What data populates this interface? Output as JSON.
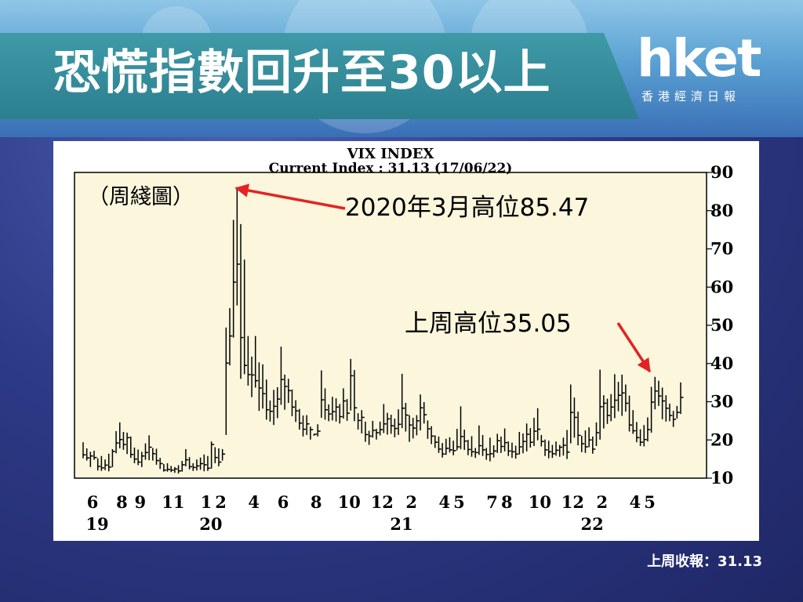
{
  "header": {
    "title": "恐慌指數回升至30以上",
    "logo_main": "hket",
    "logo_sub": "香港經濟日報"
  },
  "footer": {
    "close_text": "上周收報：31.13"
  },
  "colors": {
    "banner": "#2c7f8f",
    "plot_bg": "#fbf6dc",
    "annotation": "#e32323",
    "bars": "#000000"
  },
  "chart_data": {
    "type": "ohlc-bar",
    "title": "VIX INDEX",
    "subtitle": "Current Index : 31.13 (17/06/22)",
    "period_label": "（周綫圖）",
    "ylim": [
      10,
      90
    ],
    "yticks": [
      10,
      20,
      30,
      40,
      50,
      60,
      70,
      80,
      90
    ],
    "month_ticks": [
      {
        "label": "6",
        "week": 0
      },
      {
        "label": "8",
        "week": 8
      },
      {
        "label": "9",
        "week": 13
      },
      {
        "label": "11",
        "week": 22
      },
      {
        "label": "1",
        "week": 31
      },
      {
        "label": "2",
        "week": 35
      },
      {
        "label": "4",
        "week": 44
      },
      {
        "label": "6",
        "week": 52
      },
      {
        "label": "8",
        "week": 61
      },
      {
        "label": "10",
        "week": 70
      },
      {
        "label": "12",
        "week": 79
      },
      {
        "label": "2",
        "week": 87
      },
      {
        "label": "4",
        "week": 96
      },
      {
        "label": "5",
        "week": 100
      },
      {
        "label": "7",
        "week": 109
      },
      {
        "label": "8",
        "week": 113
      },
      {
        "label": "10",
        "week": 122
      },
      {
        "label": "12",
        "week": 131
      },
      {
        "label": "2",
        "week": 139
      },
      {
        "label": "4",
        "week": 148
      },
      {
        "label": "5",
        "week": 152
      }
    ],
    "year_ticks": [
      {
        "label": "19",
        "week": 0
      },
      {
        "label": "20",
        "week": 31
      },
      {
        "label": "21",
        "week": 83
      },
      {
        "label": "22",
        "week": 135
      }
    ],
    "annotations": [
      {
        "text": "2020年3月高位85.47",
        "week": 40,
        "value": 85.47
      },
      {
        "text": "上周高位35.05",
        "week": 155,
        "value": 35.05
      }
    ],
    "weekly": [
      [
        19.4,
        15.2,
        16.1
      ],
      [
        17.8,
        14.6,
        15.3
      ],
      [
        16.9,
        12.9,
        15.8
      ],
      [
        17.2,
        14.8,
        15.4
      ],
      [
        15.2,
        12.0,
        13.1
      ],
      [
        15.8,
        11.9,
        12.7
      ],
      [
        14.9,
        12.1,
        13.4
      ],
      [
        16.4,
        11.8,
        12.9
      ],
      [
        17.6,
        12.9,
        17.0
      ],
      [
        22.3,
        16.5,
        19.2
      ],
      [
        24.6,
        17.8,
        20.1
      ],
      [
        22.1,
        17.4,
        18.8
      ],
      [
        21.9,
        16.3,
        20.6
      ],
      [
        20.9,
        15.3,
        16.2
      ],
      [
        18.0,
        13.9,
        15.0
      ],
      [
        17.5,
        13.4,
        14.2
      ],
      [
        16.9,
        12.9,
        15.8
      ],
      [
        19.1,
        14.8,
        16.7
      ],
      [
        21.2,
        14.7,
        18.1
      ],
      [
        17.9,
        14.6,
        16.4
      ],
      [
        17.7,
        13.5,
        14.6
      ],
      [
        15.3,
        12.4,
        13.8
      ],
      [
        13.7,
        11.7,
        12.1
      ],
      [
        13.9,
        11.7,
        12.3
      ],
      [
        13.2,
        11.6,
        12.1
      ],
      [
        12.9,
        11.4,
        12.4
      ],
      [
        13.4,
        11.2,
        11.9
      ],
      [
        14.5,
        11.7,
        13.5
      ],
      [
        17.6,
        13.1,
        14.8
      ],
      [
        15.5,
        12.3,
        13.0
      ],
      [
        13.9,
        11.9,
        12.8
      ],
      [
        14.9,
        12.0,
        13.2
      ],
      [
        15.4,
        12.2,
        13.8
      ],
      [
        16.2,
        11.8,
        13.5
      ],
      [
        15.8,
        11.9,
        12.6
      ],
      [
        19.6,
        12.5,
        18.8
      ],
      [
        18.1,
        13.9,
        15.4
      ],
      [
        17.8,
        13.1,
        14.2
      ],
      [
        17.6,
        14.6,
        16.3
      ],
      [
        49.4,
        21.3,
        40.1
      ],
      [
        54.5,
        39.5,
        47.2
      ],
      [
        77.6,
        46.8,
        61.3
      ],
      [
        85.5,
        55.2,
        66.0
      ],
      [
        76.5,
        36.0,
        46.8
      ],
      [
        67.2,
        37.2,
        39.5
      ],
      [
        47.2,
        34.2,
        37.1
      ],
      [
        41.8,
        31.2,
        37.0
      ],
      [
        47.2,
        33.7,
        35.5
      ],
      [
        40.3,
        27.6,
        33.6
      ],
      [
        39.8,
        28.2,
        32.1
      ],
      [
        35.8,
        25.3,
        27.9
      ],
      [
        30.3,
        24.8,
        27.5
      ],
      [
        33.1,
        23.9,
        28.8
      ],
      [
        33.8,
        25.7,
        30.7
      ],
      [
        44.4,
        29.2,
        35.8
      ],
      [
        37.1,
        27.9,
        34.0
      ],
      [
        36.0,
        29.7,
        32.9
      ],
      [
        33.2,
        26.2,
        28.6
      ],
      [
        30.4,
        24.7,
        27.6
      ],
      [
        28.1,
        22.7,
        24.4
      ],
      [
        26.4,
        20.9,
        22.8
      ],
      [
        26.5,
        21.3,
        24.2
      ],
      [
        23.5,
        20.1,
        22.7
      ],
      [
        21.6,
        21.1,
        21.5
      ],
      [
        24.1,
        20.9,
        22.3
      ],
      [
        38.2,
        25.8,
        30.5
      ],
      [
        33.5,
        25.3,
        27.9
      ],
      [
        29.3,
        24.9,
        26.8
      ],
      [
        31.3,
        25.1,
        27.4
      ],
      [
        30.9,
        24.8,
        28.6
      ],
      [
        29.4,
        24.3,
        26.1
      ],
      [
        33.5,
        25.6,
        30.2
      ],
      [
        30.7,
        25.0,
        27.0
      ],
      [
        41.2,
        27.7,
        36.8
      ],
      [
        38.3,
        24.9,
        28.4
      ],
      [
        27.0,
        22.7,
        25.1
      ],
      [
        27.8,
        21.7,
        25.9
      ],
      [
        24.8,
        19.5,
        21.4
      ],
      [
        22.4,
        18.7,
        21.0
      ],
      [
        25.0,
        20.6,
        22.5
      ],
      [
        22.9,
        20.1,
        21.9
      ],
      [
        24.8,
        21.2,
        22.7
      ],
      [
        29.4,
        21.8,
        24.2
      ],
      [
        27.1,
        21.4,
        25.5
      ],
      [
        26.6,
        21.6,
        23.7
      ],
      [
        25.6,
        20.7,
        23.0
      ],
      [
        28.0,
        21.3,
        24.1
      ],
      [
        37.3,
        23.1,
        28.3
      ],
      [
        29.7,
        22.2,
        26.5
      ],
      [
        26.5,
        19.5,
        23.9
      ],
      [
        25.8,
        20.4,
        23.1
      ],
      [
        26.5,
        21.2,
        25.0
      ],
      [
        31.9,
        22.5,
        28.4
      ],
      [
        29.9,
        24.3,
        26.6
      ],
      [
        25.1,
        20.3,
        22.9
      ],
      [
        23.6,
        18.9,
        21.0
      ],
      [
        21.2,
        17.9,
        19.4
      ],
      [
        20.9,
        16.6,
        17.6
      ],
      [
        19.2,
        15.4,
        16.3
      ],
      [
        20.3,
        16.1,
        17.8
      ],
      [
        20.7,
        16.7,
        17.4
      ],
      [
        19.8,
        16.0,
        17.2
      ],
      [
        22.9,
        17.3,
        18.2
      ],
      [
        28.8,
        17.6,
        20.9
      ],
      [
        22.7,
        17.4,
        19.7
      ],
      [
        20.0,
        16.0,
        17.5
      ],
      [
        21.0,
        15.6,
        16.9
      ],
      [
        17.9,
        15.3,
        16.7
      ],
      [
        23.8,
        16.1,
        18.5
      ],
      [
        21.3,
        15.8,
        17.4
      ],
      [
        17.9,
        14.8,
        16.2
      ],
      [
        20.6,
        14.4,
        16.4
      ],
      [
        18.6,
        15.4,
        17.1
      ],
      [
        21.6,
        16.6,
        19.8
      ],
      [
        20.9,
        16.6,
        18.3
      ],
      [
        23.0,
        17.0,
        19.3
      ],
      [
        19.6,
        15.8,
        17.1
      ],
      [
        19.3,
        15.3,
        16.9
      ],
      [
        18.5,
        15.1,
        16.3
      ],
      [
        22.1,
        16.2,
        18.2
      ],
      [
        21.7,
        16.5,
        19.6
      ],
      [
        24.3,
        17.0,
        21.5
      ],
      [
        23.1,
        18.0,
        19.4
      ],
      [
        25.8,
        18.4,
        22.3
      ],
      [
        28.3,
        19.9,
        22.8
      ],
      [
        21.3,
        18.3,
        19.6
      ],
      [
        20.1,
        15.8,
        17.4
      ],
      [
        19.8,
        15.2,
        16.9
      ],
      [
        18.7,
        15.3,
        16.4
      ],
      [
        19.6,
        15.9,
        17.3
      ],
      [
        18.7,
        15.6,
        18.1
      ],
      [
        20.6,
        15.9,
        18.6
      ],
      [
        22.6,
        15.0,
        16.8
      ],
      [
        34.5,
        19.1,
        27.2
      ],
      [
        31.1,
        20.6,
        25.9
      ],
      [
        27.4,
        18.6,
        21.2
      ],
      [
        21.1,
        16.8,
        19.0
      ],
      [
        22.5,
        16.6,
        18.2
      ],
      [
        23.3,
        18.1,
        20.0
      ],
      [
        20.9,
        16.4,
        17.6
      ],
      [
        24.6,
        18.4,
        21.9
      ],
      [
        38.4,
        20.1,
        28.7
      ],
      [
        31.7,
        23.0,
        29.6
      ],
      [
        30.8,
        24.2,
        26.4
      ],
      [
        32.0,
        24.9,
        28.6
      ],
      [
        37.2,
        25.7,
        30.4
      ],
      [
        35.2,
        27.5,
        31.7
      ],
      [
        37.1,
        26.3,
        32.3
      ],
      [
        34.5,
        27.4,
        29.6
      ],
      [
        31.6,
        22.2,
        23.9
      ],
      [
        27.8,
        21.6,
        22.4
      ],
      [
        24.7,
        19.4,
        20.6
      ],
      [
        22.8,
        18.4,
        19.4
      ],
      [
        23.9,
        18.3,
        20.1
      ],
      [
        25.9,
        19.6,
        22.7
      ],
      [
        33.9,
        21.9,
        29.9
      ],
      [
        36.5,
        28.0,
        32.8
      ],
      [
        35.5,
        28.9,
        31.5
      ],
      [
        33.7,
        25.4,
        30.2
      ],
      [
        31.7,
        24.8,
        28.3
      ],
      [
        29.5,
        24.9,
        26.4
      ],
      [
        27.6,
        23.4,
        25.4
      ],
      [
        28.9,
        25.6,
        27.2
      ],
      [
        35.05,
        26.8,
        31.13
      ]
    ]
  }
}
